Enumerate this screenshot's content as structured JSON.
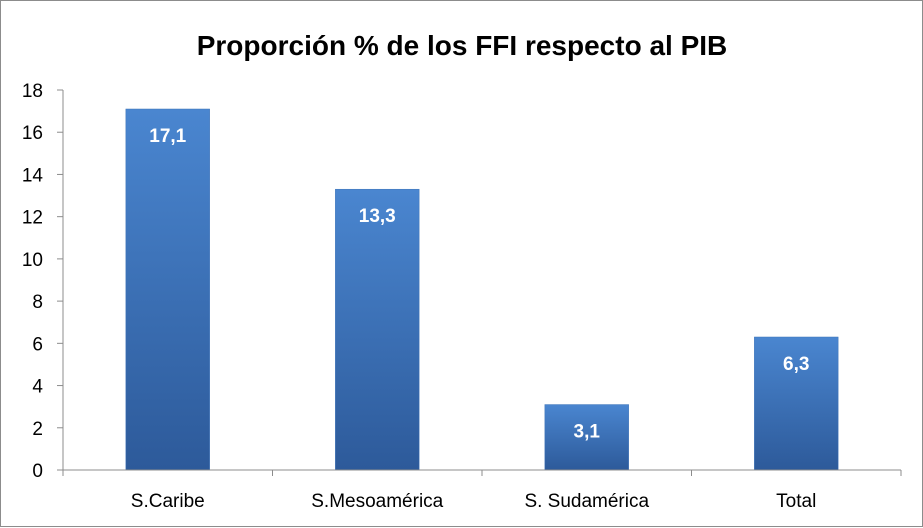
{
  "chart_data": {
    "type": "bar",
    "title": "Proporción % de los FFI respecto al PIB",
    "xlabel": "",
    "ylabel": "",
    "categories": [
      "S.Caribe",
      "S.Mesoamérica",
      "S. Sudamérica",
      "Total"
    ],
    "values": [
      17.1,
      13.3,
      3.1,
      6.3
    ],
    "data_labels": [
      "17,1",
      "13,3",
      "3,1",
      "6,3"
    ],
    "ylim": [
      0,
      18
    ],
    "yticks": [
      0,
      2,
      4,
      6,
      8,
      10,
      12,
      14,
      16,
      18
    ],
    "grid": false,
    "legend": "none",
    "colors": {
      "bar_top": "#4a86d0",
      "bar_bottom": "#2d5a9a",
      "axis": "#8c8c8c"
    }
  }
}
